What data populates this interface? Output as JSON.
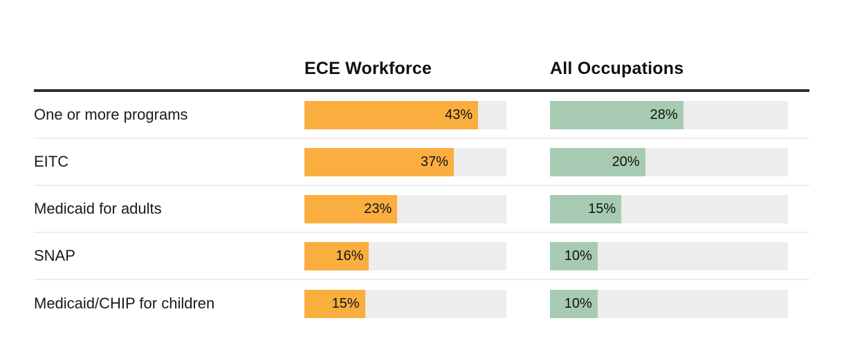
{
  "header": {
    "ece_label": "ECE Workforce",
    "all_label": "All Occupations"
  },
  "colors": {
    "ece_bar": "#FBAE40",
    "all_bar": "#A7CBB2",
    "bar_track": "#EDEDED",
    "header_rule": "#2E2E2E",
    "text": "#1A1A1A"
  },
  "chart_data": {
    "type": "bar",
    "orientation": "horizontal",
    "title": "",
    "categories": [
      "One or more programs",
      "EITC",
      "Medicaid for adults",
      "SNAP",
      "Medicaid/CHIP for children"
    ],
    "series": [
      {
        "name": "ECE Workforce",
        "color": "#FBAE40",
        "values": [
          43,
          37,
          23,
          16,
          15
        ]
      },
      {
        "name": "All Occupations",
        "color": "#A7CBB2",
        "values": [
          28,
          20,
          15,
          10,
          10
        ]
      }
    ],
    "value_suffix": "%",
    "value_labels": [
      [
        "43%",
        "28%"
      ],
      [
        "37%",
        "20%"
      ],
      [
        "23%",
        "15%"
      ],
      [
        "16%",
        "10%"
      ],
      [
        "15%",
        "10%"
      ]
    ],
    "xlim": [
      0,
      50
    ],
    "grid": false,
    "legend_position": "column-headers",
    "track_color": "#EDEDED",
    "labels_inside_bars": true
  }
}
